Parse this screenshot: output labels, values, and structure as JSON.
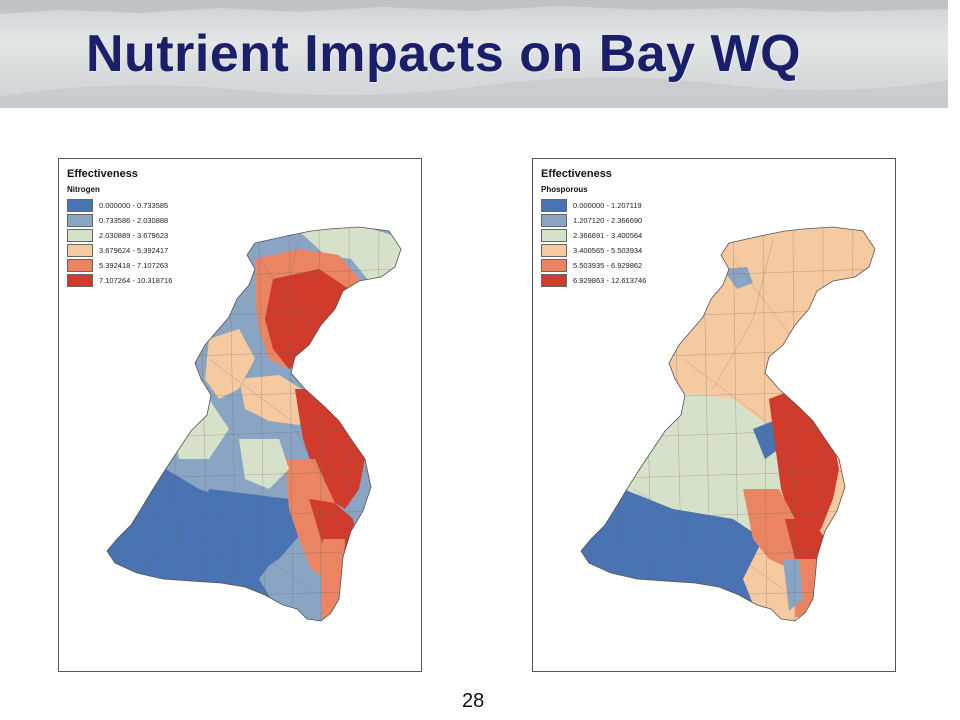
{
  "title": "Nutrient Impacts on Bay WQ",
  "page_number": "28",
  "maps": [
    {
      "legend_title": "Effectiveness",
      "legend_subtitle": "Nitrogen",
      "classes": [
        {
          "range": "0.000000 - 0.733585",
          "color": "#4a73b3"
        },
        {
          "range": "0.733586 - 2.030888",
          "color": "#8aa4c4"
        },
        {
          "range": "2.030889 - 3.679623",
          "color": "#d6e1c9"
        },
        {
          "range": "3.679624 - 5.392417",
          "color": "#f6caa0"
        },
        {
          "range": "5.392418 - 7.107263",
          "color": "#ea8462"
        },
        {
          "range": "7.107264 - 10.318716",
          "color": "#d13b2c"
        }
      ]
    },
    {
      "legend_title": "Effectiveness",
      "legend_subtitle": "Phosporous",
      "classes": [
        {
          "range": "0.000000 - 1.207119",
          "color": "#4a73b3"
        },
        {
          "range": "1.207120 - 2.366690",
          "color": "#8aa4c4"
        },
        {
          "range": "2.366691 - 3.400564",
          "color": "#d6e1c9"
        },
        {
          "range": "3.400565 - 5.503934",
          "color": "#f6caa0"
        },
        {
          "range": "5.503935 - 6.929862",
          "color": "#ea8462"
        },
        {
          "range": "6.929863 - 12.613746",
          "color": "#d13b2c"
        }
      ]
    }
  ]
}
